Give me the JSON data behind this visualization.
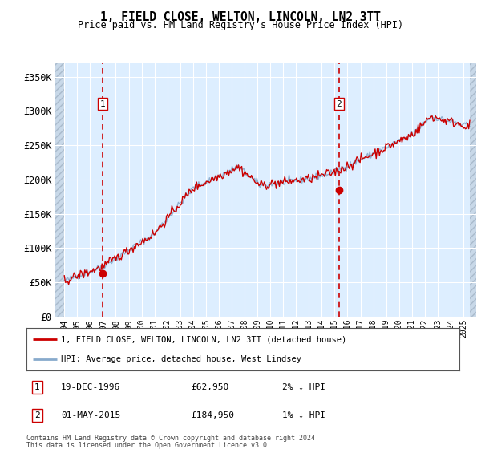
{
  "title": "1, FIELD CLOSE, WELTON, LINCOLN, LN2 3TT",
  "subtitle": "Price paid vs. HM Land Registry's House Price Index (HPI)",
  "ylim": [
    0,
    370000
  ],
  "yticks": [
    0,
    50000,
    100000,
    150000,
    200000,
    250000,
    300000,
    350000
  ],
  "ytick_labels": [
    "£0",
    "£50K",
    "£100K",
    "£150K",
    "£200K",
    "£250K",
    "£300K",
    "£350K"
  ],
  "sale1_year": 1996.97,
  "sale1_price": 62950,
  "sale1_date_str": "19-DEC-1996",
  "sale1_price_str": "£62,950",
  "sale1_hpi_str": "2% ↓ HPI",
  "sale2_year": 2015.33,
  "sale2_price": 184950,
  "sale2_date_str": "01-MAY-2015",
  "sale2_price_str": "£184,950",
  "sale2_hpi_str": "1% ↓ HPI",
  "legend_red": "1, FIELD CLOSE, WELTON, LINCOLN, LN2 3TT (detached house)",
  "legend_blue": "HPI: Average price, detached house, West Lindsey",
  "footnote1": "Contains HM Land Registry data © Crown copyright and database right 2024.",
  "footnote2": "This data is licensed under the Open Government Licence v3.0.",
  "plot_bg": "#ddeeff",
  "grid_color": "#ffffff",
  "red_line_color": "#cc0000",
  "blue_line_color": "#88aacc",
  "sale_marker_color": "#cc0000",
  "dashed_line_color": "#cc0000",
  "box_edge_color": "#cc0000",
  "hatch_bg": "#c8d8e8"
}
